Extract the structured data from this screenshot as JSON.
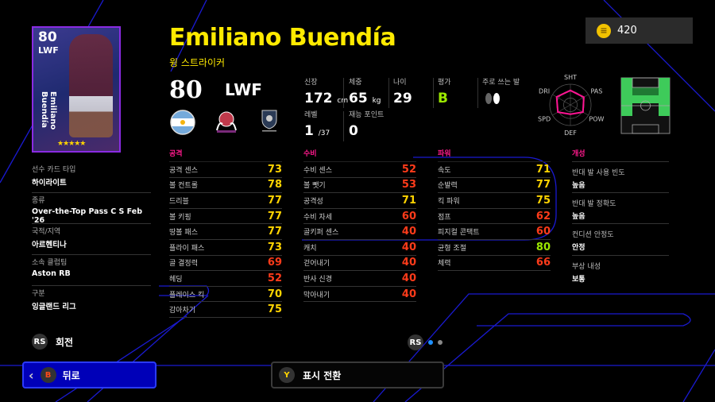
{
  "coins": {
    "icon": "coin-icon",
    "amount": "420"
  },
  "card": {
    "overall": "80",
    "position": "LWF",
    "name": "Emiliano Buendía",
    "stars": "★★★★★",
    "border_color": "#8a2be2"
  },
  "player": {
    "name": "Emiliano Buendía",
    "playstyle": "윙 스트라이커",
    "overall": "80",
    "position": "LWF"
  },
  "badges": {
    "nation": "argentina-flag-icon",
    "club": "club-crest-icon",
    "league": "english-league-icon"
  },
  "profile": {
    "height": {
      "label": "신장",
      "value": "172",
      "unit": "cm"
    },
    "weight": {
      "label": "체중",
      "value": "65",
      "unit": "kg"
    },
    "age": {
      "label": "나이",
      "value": "29"
    },
    "rating": {
      "label": "평가",
      "value": "B",
      "color": "#9be800"
    },
    "foot": {
      "label": "주로 쓰는 발",
      "icon": "feet-icon-right"
    },
    "level": {
      "label": "레벨",
      "value": "1",
      "max": "/37"
    },
    "skill_points": {
      "label": "재능 포인트",
      "value": "0"
    }
  },
  "radar": {
    "labels": [
      "SHT",
      "PAS",
      "POW",
      "DEF",
      "SPD",
      "DRI"
    ],
    "values": [
      70,
      75,
      70,
      45,
      70,
      77
    ],
    "color": "#ff1493"
  },
  "pitch": {
    "positions_highlighted": [
      "LWF",
      "RWF",
      "LMF",
      "RMF",
      "AMF",
      "CF"
    ],
    "color": "#3ecb5a"
  },
  "info": [
    {
      "label": "선수 카드 타입",
      "value": "하이라이트"
    },
    {
      "label": "종류",
      "value": "Over-the-Top Pass C S Feb '26"
    },
    {
      "label": "국적/지역",
      "value": "아르헨티나"
    },
    {
      "label": "소속 클럽팀",
      "value": "Aston RB"
    },
    {
      "label": "구분",
      "value": "잉글랜드 리그"
    }
  ],
  "stat_groups": [
    {
      "title": "공격",
      "stats": [
        {
          "name": "공격 센스",
          "value": "73",
          "color": "#ffd400"
        },
        {
          "name": "볼 컨트롤",
          "value": "78",
          "color": "#ffd400"
        },
        {
          "name": "드리블",
          "value": "77",
          "color": "#ffd400"
        },
        {
          "name": "볼 키핑",
          "value": "77",
          "color": "#ffd400"
        },
        {
          "name": "땅볼 패스",
          "value": "77",
          "color": "#ffd400"
        },
        {
          "name": "플라이 패스",
          "value": "73",
          "color": "#ffd400"
        },
        {
          "name": "골 결정력",
          "value": "69",
          "color": "#ff3b1a"
        },
        {
          "name": "헤딩",
          "value": "52",
          "color": "#ff3b1a"
        },
        {
          "name": "플레이스 킥",
          "value": "70",
          "color": "#ffd400"
        },
        {
          "name": "감아차기",
          "value": "75",
          "color": "#ffd400"
        }
      ]
    },
    {
      "title": "수비",
      "stats": [
        {
          "name": "수비 센스",
          "value": "52",
          "color": "#ff3b1a"
        },
        {
          "name": "볼 뺏기",
          "value": "53",
          "color": "#ff3b1a"
        },
        {
          "name": "공격성",
          "value": "71",
          "color": "#ffd400"
        },
        {
          "name": "수비 자세",
          "value": "60",
          "color": "#ff3b1a"
        },
        {
          "name": "골키퍼 센스",
          "value": "40",
          "color": "#ff3b1a"
        },
        {
          "name": "캐치",
          "value": "40",
          "color": "#ff3b1a"
        },
        {
          "name": "걷어내기",
          "value": "40",
          "color": "#ff3b1a"
        },
        {
          "name": "반사 신경",
          "value": "40",
          "color": "#ff3b1a"
        },
        {
          "name": "막아내기",
          "value": "40",
          "color": "#ff3b1a"
        }
      ]
    },
    {
      "title": "파워",
      "stats": [
        {
          "name": "속도",
          "value": "71",
          "color": "#ffd400"
        },
        {
          "name": "순발력",
          "value": "77",
          "color": "#ffd400"
        },
        {
          "name": "킥 파워",
          "value": "75",
          "color": "#ffd400"
        },
        {
          "name": "점프",
          "value": "62",
          "color": "#ff3b1a"
        },
        {
          "name": "피지컬 콘택트",
          "value": "60",
          "color": "#ff3b1a"
        },
        {
          "name": "균형 조절",
          "value": "80",
          "color": "#9be800"
        },
        {
          "name": "체력",
          "value": "66",
          "color": "#ff3b1a"
        }
      ]
    }
  ],
  "traits": {
    "title": "개성",
    "items": [
      {
        "label": "반대 발 사용 빈도",
        "value": "높음"
      },
      {
        "label": "반대 발 정확도",
        "value": "높음"
      },
      {
        "label": "컨디션 안정도",
        "value": "안정"
      },
      {
        "label": "부상 내성",
        "value": "보통"
      }
    ]
  },
  "controls": {
    "rotate": {
      "button": "RS",
      "label": "회전"
    },
    "pager": {
      "button": "RS",
      "pages": 2,
      "active": 1
    },
    "back": {
      "button": "B",
      "label": "뒤로"
    },
    "toggle": {
      "button": "Y",
      "label": "표시 전환"
    }
  }
}
